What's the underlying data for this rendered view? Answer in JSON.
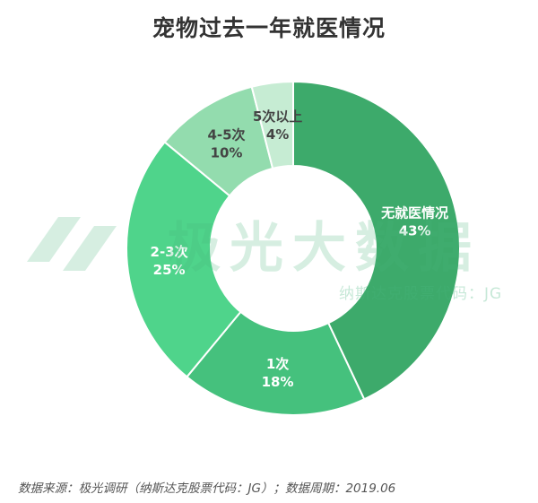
{
  "title": "宠物过去一年就医情况",
  "watermark": {
    "name": "极光大数据",
    "subtitle": "纳斯达克股票代码：JG"
  },
  "source": "数据来源：极光调研（纳斯达克股票代码：JG）；数据周期：2019.06",
  "colors": {
    "title": "#333333",
    "label_dark": "#444444",
    "label_light": "#ffffff"
  },
  "chart_data": {
    "type": "pie",
    "donut": true,
    "categories": [
      "无就医情况",
      "1次",
      "2-3次",
      "4-5次",
      "5次以上"
    ],
    "values": [
      43,
      18,
      25,
      10,
      4
    ],
    "value_labels": [
      "43%",
      "18%",
      "25%",
      "10%",
      "4%"
    ],
    "colors": [
      "#3daa6b",
      "#45c17d",
      "#4fd48b",
      "#93dcae",
      "#c6ecd3"
    ],
    "label_colors": [
      "#ffffff",
      "#ffffff",
      "#ffffff",
      "#444444",
      "#444444"
    ],
    "start_angle_deg": 0,
    "direction": "clockwise"
  }
}
